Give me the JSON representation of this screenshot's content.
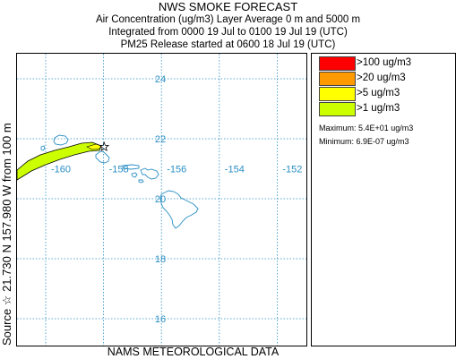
{
  "header": {
    "title": "NWS SMOKE FORECAST",
    "line1": "Air Concentration (ug/m3) Layer Average    0 m and  5000 m",
    "line2": "Integrated from 0000 19 Jul to 0100 19 Jul 19 (UTC)",
    "line3": "PM25 Release started at 0600 18 Jul 19 (UTC)"
  },
  "side_label": "Source ☆  21.730  N 157.980  W     from  100 m",
  "footer": "NAMS METEOROLOGICAL DATA",
  "map": {
    "lon_labels": [
      "-160",
      "-158",
      "-156",
      "-154",
      "-152"
    ],
    "lat_labels": [
      "24",
      "22",
      "20",
      "18",
      "16"
    ],
    "lon_values": [
      -160,
      -158,
      -156,
      -154,
      -152
    ],
    "lat_values": [
      24,
      22,
      20,
      18,
      16
    ],
    "source": {
      "lat": 21.73,
      "lon": -157.98
    },
    "plume_color": "#ccff00",
    "plume_inner_color": "#ffff00",
    "grid_color": "#2a8fc4",
    "land_color": "#2a8fc4"
  },
  "legend": {
    "items": [
      {
        "label": ">100 ug/m3",
        "color": "#ff0000"
      },
      {
        "label": ">20 ug/m3",
        "color": "#ff9900"
      },
      {
        "label": ">5 ug/m3",
        "color": "#ffff00"
      },
      {
        "label": ">1 ug/m3",
        "color": "#ccff00"
      }
    ],
    "maximum": "Maximum: 5.4E+01 ug/m3",
    "minimum": "Minimum: 6.9E-07 ug/m3"
  }
}
